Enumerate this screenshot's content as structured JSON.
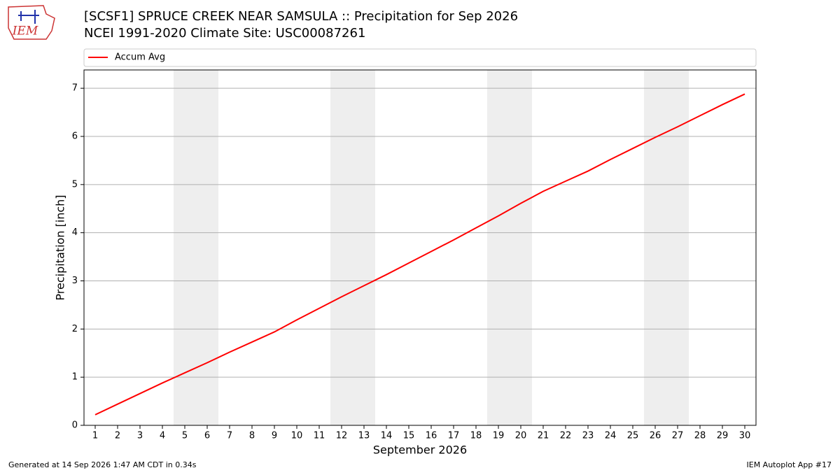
{
  "logo_text": "IEM",
  "footer_left": "Generated at 14 Sep 2026 1:47 AM CDT in 0.34s",
  "footer_right": "IEM Autoplot App #17",
  "chart_data": {
    "type": "line",
    "title": "[SCSF1] SPRUCE CREEK NEAR SAMSULA :: Precipitation for Sep 2026",
    "subtitle": "NCEI 1991-2020 Climate Site: USC00087261",
    "xlabel": "September 2026",
    "ylabel": "Precipitation [inch]",
    "x": [
      1,
      2,
      3,
      4,
      5,
      6,
      7,
      8,
      9,
      10,
      11,
      12,
      13,
      14,
      15,
      16,
      17,
      18,
      19,
      20,
      21,
      22,
      23,
      24,
      25,
      26,
      27,
      28,
      29,
      30
    ],
    "series": [
      {
        "name": "Accum Avg",
        "color": "#ff0000",
        "values": [
          0.22,
          0.44,
          0.66,
          0.88,
          1.09,
          1.3,
          1.52,
          1.73,
          1.94,
          2.19,
          2.43,
          2.67,
          2.9,
          3.13,
          3.37,
          3.61,
          3.85,
          4.1,
          4.35,
          4.61,
          4.86,
          5.07,
          5.28,
          5.52,
          5.75,
          5.98,
          6.2,
          6.43,
          6.66,
          6.88
        ]
      }
    ],
    "xlim": [
      0.5,
      30.5
    ],
    "ylim": [
      0,
      7.38
    ],
    "xticks": [
      1,
      2,
      3,
      4,
      5,
      6,
      7,
      8,
      9,
      10,
      11,
      12,
      13,
      14,
      15,
      16,
      17,
      18,
      19,
      20,
      21,
      22,
      23,
      24,
      25,
      26,
      27,
      28,
      29,
      30
    ],
    "yticks": [
      0,
      1,
      2,
      3,
      4,
      5,
      6,
      7
    ],
    "grid": true,
    "shaded_ranges": [
      [
        4.5,
        6.5
      ],
      [
        11.5,
        13.5
      ],
      [
        18.5,
        20.5
      ],
      [
        25.5,
        27.5
      ]
    ],
    "shade_color": "#eeeeee",
    "legend": "top"
  }
}
